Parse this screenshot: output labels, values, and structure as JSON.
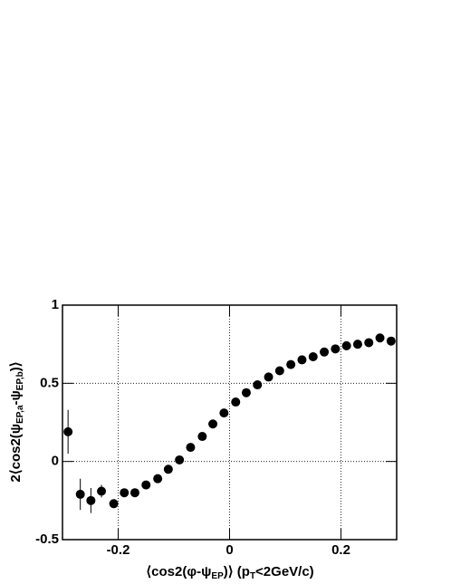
{
  "chart_data": {
    "type": "scatter",
    "xlabel": [
      "⟨cos2(φ-ψ",
      "EP",
      ")⟩ (p",
      "T",
      "<2GeV/c)"
    ],
    "ylabel": [
      "2⟨cos2(ψ",
      "EP,a",
      "-ψ",
      "EP,b",
      ")⟩"
    ],
    "xlim": [
      -0.3,
      0.3
    ],
    "xticks": [
      -0.2,
      0,
      0.2
    ],
    "ylim": [
      -0.5,
      1
    ],
    "yticks": [
      -0.5,
      0,
      0.5,
      1
    ],
    "grid": true,
    "series": [
      {
        "color": "#000000",
        "x": [
          -0.29,
          -0.268,
          -0.249,
          -0.23,
          -0.208,
          -0.189,
          -0.17,
          -0.15,
          -0.129,
          -0.11,
          -0.09,
          -0.07,
          -0.049,
          -0.03,
          -0.01,
          0.011,
          0.03,
          0.05,
          0.07,
          0.09,
          0.11,
          0.13,
          0.15,
          0.17,
          0.19,
          0.21,
          0.23,
          0.25,
          0.27,
          0.29
        ],
        "values": [
          0.19,
          -0.21,
          -0.25,
          -0.19,
          -0.27,
          -0.2,
          -0.2,
          -0.15,
          -0.11,
          -0.05,
          0.01,
          0.09,
          0.16,
          0.24,
          0.31,
          0.38,
          0.44,
          0.49,
          0.54,
          0.58,
          0.62,
          0.65,
          0.67,
          0.7,
          0.72,
          0.74,
          0.75,
          0.76,
          0.79,
          0.77
        ],
        "errors": [
          0.14,
          0.1,
          0.08,
          0.04,
          0.02,
          0.02,
          0.01,
          0.01,
          0.01,
          0.01,
          0.01,
          0.01,
          0.01,
          0.01,
          0.01,
          0.01,
          0.01,
          0.01,
          0.01,
          0.01,
          0.01,
          0.01,
          0.01,
          0.01,
          0.01,
          0.01,
          0.01,
          0.01,
          0.01,
          0.01
        ]
      }
    ]
  }
}
